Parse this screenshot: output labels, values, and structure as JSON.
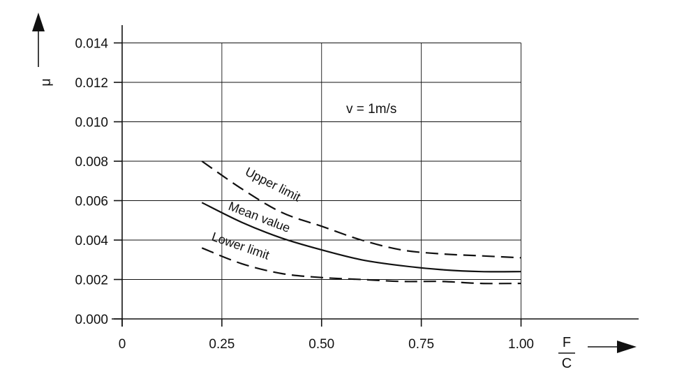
{
  "chart_data": {
    "type": "line",
    "title": "",
    "annotation": "v = 1m/s",
    "ylabel": "μ",
    "xlabel": {
      "numerator": "F",
      "denominator": "C"
    },
    "xlim": [
      0,
      1.3
    ],
    "ylim": [
      0,
      0.014
    ],
    "x_ticks": [
      0,
      0.25,
      0.5,
      0.75,
      1.0
    ],
    "x_tick_labels": [
      "0",
      "0.25",
      "0.50",
      "0.75",
      "1.00"
    ],
    "y_ticks": [
      0,
      0.002,
      0.004,
      0.006,
      0.008,
      0.01,
      0.012,
      0.014
    ],
    "y_tick_labels": [
      "0.000",
      "0.002",
      "0.004",
      "0.006",
      "0.008",
      "0.010",
      "0.012",
      "0.014"
    ],
    "grid": true,
    "series": [
      {
        "name": "Upper limit",
        "style": "dashed",
        "x": [
          0.2,
          0.3,
          0.4,
          0.5,
          0.6,
          0.7,
          0.8,
          0.9,
          1.0
        ],
        "y": [
          0.008,
          0.0066,
          0.0054,
          0.0047,
          0.004,
          0.0035,
          0.0033,
          0.0032,
          0.0031
        ]
      },
      {
        "name": "Mean value",
        "style": "solid",
        "x": [
          0.2,
          0.3,
          0.4,
          0.5,
          0.6,
          0.7,
          0.8,
          0.9,
          1.0
        ],
        "y": [
          0.0059,
          0.0049,
          0.0041,
          0.0035,
          0.003,
          0.0027,
          0.0025,
          0.0024,
          0.0024
        ]
      },
      {
        "name": "Lower limit",
        "style": "dashed",
        "x": [
          0.2,
          0.3,
          0.4,
          0.5,
          0.6,
          0.7,
          0.8,
          0.9,
          1.0
        ],
        "y": [
          0.0036,
          0.0028,
          0.0023,
          0.0021,
          0.002,
          0.0019,
          0.0019,
          0.0018,
          0.0018
        ]
      }
    ],
    "colors": {
      "ink": "#111111",
      "background": "#ffffff"
    }
  }
}
